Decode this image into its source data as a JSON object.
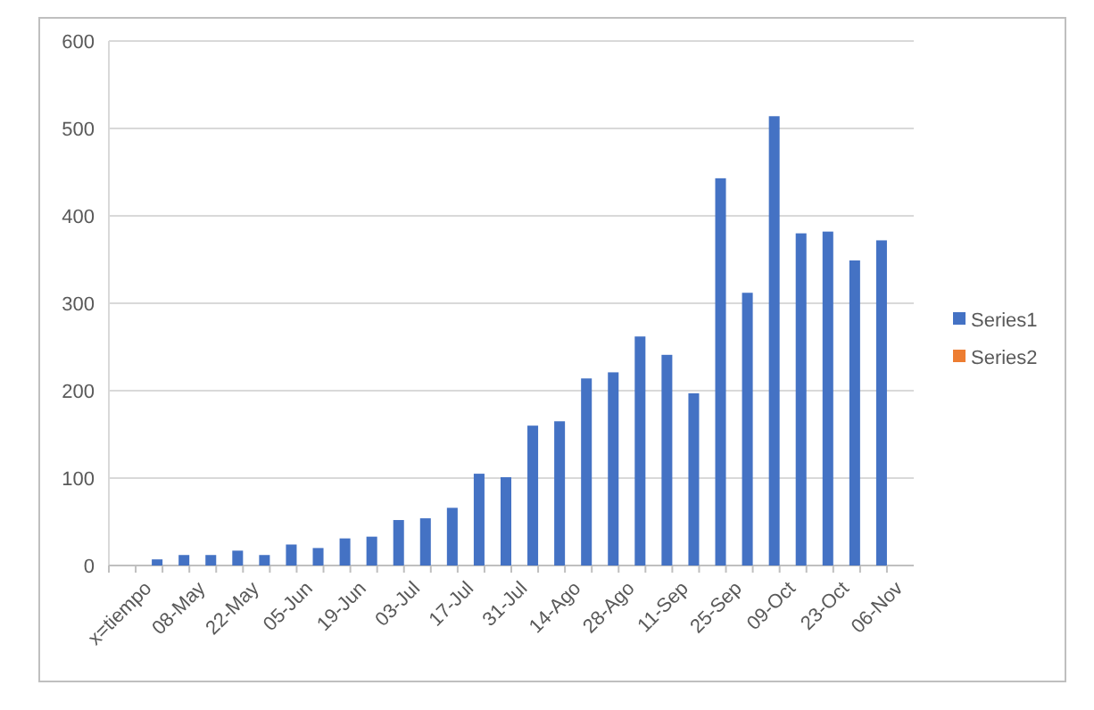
{
  "chart_data": {
    "type": "bar",
    "categories": [
      "x=tiempo",
      null,
      "08-May",
      null,
      "22-May",
      null,
      "05-Jun",
      null,
      "19-Jun",
      null,
      "03-Jul",
      null,
      "17-Jul",
      null,
      "31-Jul",
      null,
      "14-Ago",
      null,
      "28-Ago",
      null,
      "11-Sep",
      null,
      "25-Sep",
      null,
      "09-Oct",
      null,
      "23-Oct",
      null,
      "06-Nov"
    ],
    "series": [
      {
        "name": "Series1",
        "color": "#4472c4",
        "values": [
          null,
          7,
          12,
          12,
          17,
          12,
          24,
          20,
          31,
          33,
          52,
          54,
          66,
          105,
          101,
          160,
          165,
          214,
          221,
          262,
          241,
          197,
          443,
          312,
          514,
          380,
          382,
          349,
          372
        ]
      },
      {
        "name": "Series2",
        "color": "#ed7d31",
        "values": [
          null,
          null,
          null,
          null,
          null,
          null,
          null,
          null,
          null,
          null,
          null,
          null,
          null,
          null,
          null,
          null,
          null,
          null,
          null,
          null,
          null,
          null,
          null,
          null,
          null,
          null,
          null,
          null,
          null
        ]
      }
    ],
    "ylim": [
      0,
      600
    ],
    "yticks": [
      0,
      100,
      200,
      300,
      400,
      500,
      600
    ],
    "grid": "y",
    "legend": "right"
  }
}
